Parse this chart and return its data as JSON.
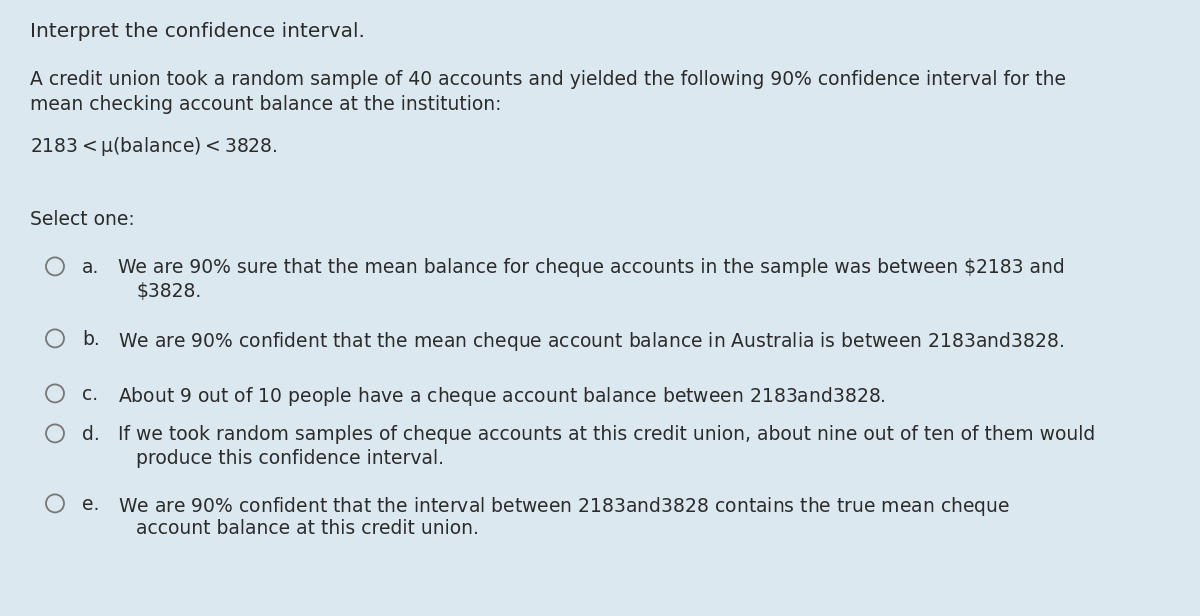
{
  "background_color": "#dce8f0",
  "title": "Interpret the confidence interval.",
  "body_text_line1": "A credit union took a random sample of 40 accounts and yielded the following 90% confidence interval for the",
  "body_text_line2": "mean checking account balance at the institution:",
  "formula": "$2183 < μ(balance) < $3828.",
  "select_label": "Select one:",
  "option_letters": [
    "a.",
    "b.",
    "c.",
    "d.",
    "e."
  ],
  "option_lines": [
    [
      "We are 90% sure that the mean balance for cheque accounts in the sample was between $2183 and",
      "$3828."
    ],
    [
      "We are 90% confident that the mean cheque account balance in Australia is between $2183 and $3828."
    ],
    [
      "About 9 out of 10 people have a cheque account balance between $2183 and $3828."
    ],
    [
      "If we took random samples of cheque accounts at this credit union, about nine out of ten of them would",
      "produce this confidence interval."
    ],
    [
      "We are 90% confident that the interval between $2183 and $3828 contains the true mean cheque",
      "account balance at this credit union."
    ]
  ],
  "text_color": "#2b2b2b",
  "font_size": 13.5,
  "title_font_size": 14.5
}
